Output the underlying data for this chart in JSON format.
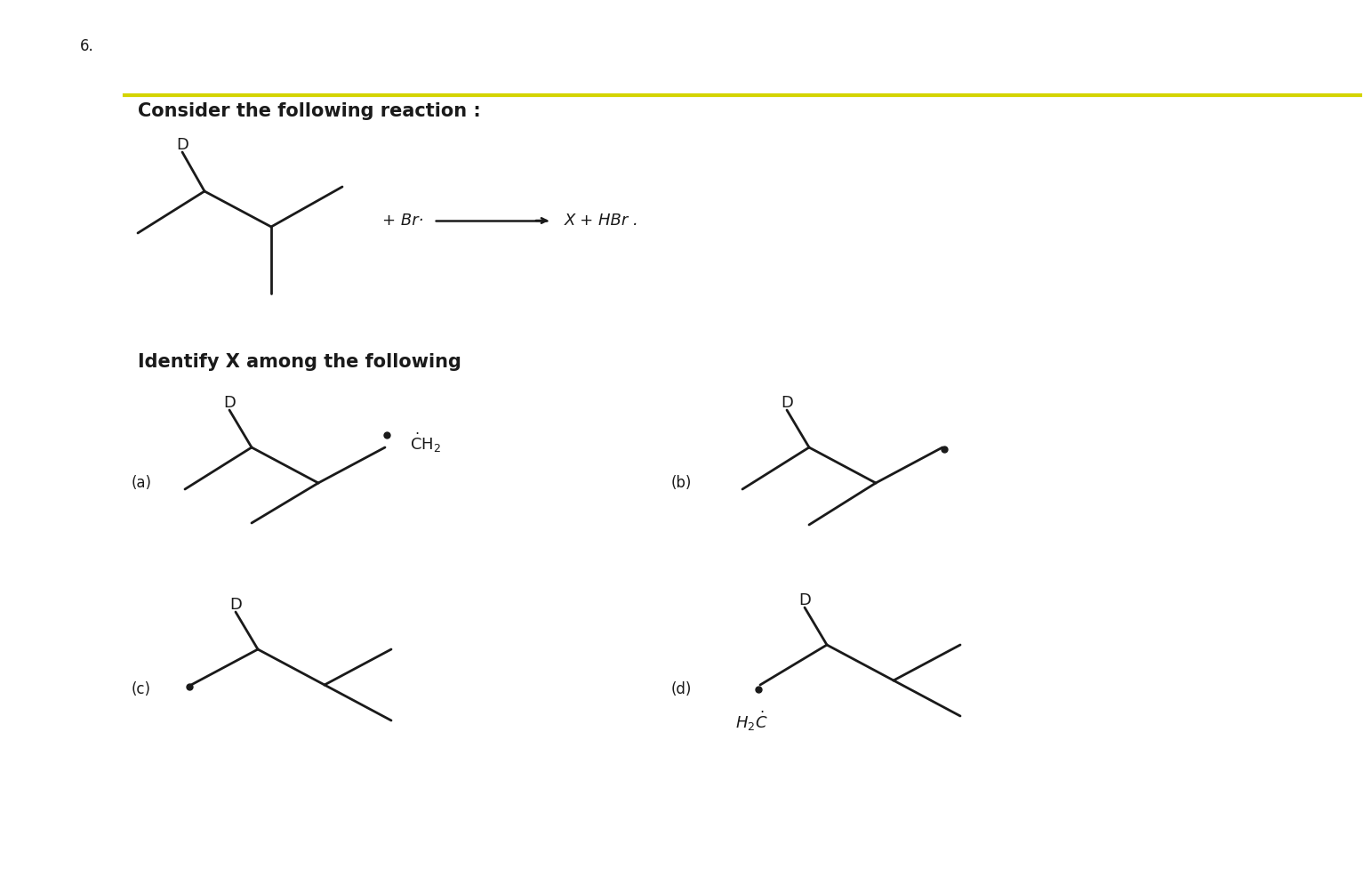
{
  "title_number": "6.",
  "header_text": "Consider the following reaction :",
  "identify_text": "Identify X among the following",
  "background_color": "#ffffff",
  "highlight_line_color": "#d4d400",
  "text_color": "#1a1a1a",
  "line_color": "#1a1a1a",
  "line_width": 2.0,
  "font_size_number": 12,
  "font_size_header": 15,
  "font_size_label": 13,
  "font_size_option": 12
}
